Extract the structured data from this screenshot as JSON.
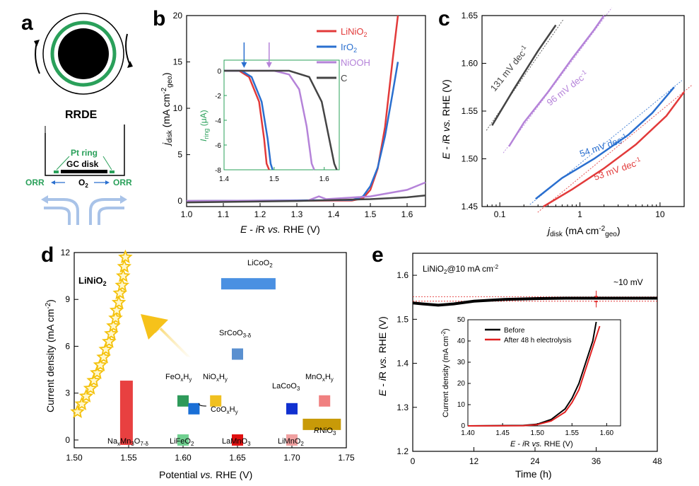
{
  "colors": {
    "LiNiO2": "#e23a3a",
    "IrO2": "#2a6fcf",
    "NiOOH": "#b583d9",
    "C": "#444444",
    "ring_axis": "#2aa05a",
    "star": "#f4c20d"
  },
  "panel_a": {
    "label": "a",
    "rrde_label": "RRDE",
    "pt_ring": "Pt ring",
    "gc_disk": "GC disk",
    "orr_left": "ORR",
    "orr_right": "ORR",
    "o2": "O",
    "o2_sub": "2"
  },
  "chart_data": [
    {
      "panel": "b",
      "type": "line",
      "xlabel": "E - iR vs. RHE (V)",
      "ylabel": "j_disk (mA cm^-2_geo)",
      "xlim": [
        1.0,
        1.65
      ],
      "ylim": [
        -0.6,
        20
      ],
      "xticks": [
        "1.0",
        "1.1",
        "1.2",
        "1.3",
        "1.4",
        "1.5",
        "1.6"
      ],
      "yticks": [
        "0",
        "5",
        "10",
        "15",
        "20"
      ],
      "legend": [
        "LiNiO2",
        "IrO2",
        "NiOOH",
        "C"
      ],
      "legend_placement": "top-right",
      "series": [
        {
          "name": "LiNiO2",
          "points": [
            [
              1.0,
              0.0
            ],
            [
              1.45,
              0.05
            ],
            [
              1.48,
              0.3
            ],
            [
              1.5,
              1.2
            ],
            [
              1.52,
              3.5
            ],
            [
              1.54,
              8
            ],
            [
              1.56,
              15
            ],
            [
              1.575,
              20
            ]
          ]
        },
        {
          "name": "IrO2",
          "points": [
            [
              1.0,
              0.0
            ],
            [
              1.45,
              0.1
            ],
            [
              1.48,
              0.5
            ],
            [
              1.5,
              1.6
            ],
            [
              1.52,
              3.6
            ],
            [
              1.54,
              7
            ],
            [
              1.56,
              11.5
            ],
            [
              1.575,
              15
            ]
          ]
        },
        {
          "name": "NiOOH",
          "points": [
            [
              1.0,
              0.0
            ],
            [
              1.33,
              0.05
            ],
            [
              1.36,
              0.5
            ],
            [
              1.38,
              0.2
            ],
            [
              1.5,
              0.5
            ],
            [
              1.6,
              1.2
            ],
            [
              1.65,
              2
            ]
          ]
        },
        {
          "name": "C",
          "points": [
            [
              1.0,
              -0.15
            ],
            [
              1.3,
              0.0
            ],
            [
              1.5,
              0.2
            ],
            [
              1.6,
              0.4
            ],
            [
              1.65,
              0.6
            ]
          ]
        }
      ],
      "inset": {
        "xlabel": "E - iR vs. RHE (V)",
        "ylabel": "I_ring (μA)",
        "xlim": [
          1.4,
          1.63
        ],
        "ylim": [
          -8,
          0
        ],
        "xticks": [
          "1.4",
          "1.5",
          "1.6"
        ],
        "yticks": [
          "0",
          "-2",
          "-4",
          "-6",
          "-8"
        ],
        "series": [
          {
            "name": "LiNiO2",
            "points": [
              [
                1.4,
                0.0
              ],
              [
                1.43,
                0.0
              ],
              [
                1.45,
                -0.5
              ],
              [
                1.47,
                -2.5
              ],
              [
                1.48,
                -5.5
              ],
              [
                1.485,
                -7.5
              ],
              [
                1.49,
                -8
              ]
            ]
          },
          {
            "name": "IrO2",
            "points": [
              [
                1.4,
                0.0
              ],
              [
                1.435,
                0.0
              ],
              [
                1.455,
                -0.5
              ],
              [
                1.475,
                -2.5
              ],
              [
                1.487,
                -5.5
              ],
              [
                1.493,
                -7.5
              ],
              [
                1.497,
                -8
              ]
            ]
          },
          {
            "name": "NiOOH",
            "points": [
              [
                1.4,
                0.0
              ],
              [
                1.5,
                0.0
              ],
              [
                1.53,
                -0.3
              ],
              [
                1.55,
                -1.5
              ],
              [
                1.565,
                -4.5
              ],
              [
                1.575,
                -7.5
              ],
              [
                1.58,
                -8
              ]
            ]
          },
          {
            "name": "C",
            "points": [
              [
                1.4,
                0.0
              ],
              [
                1.53,
                0.0
              ],
              [
                1.57,
                -0.5
              ],
              [
                1.595,
                -2.5
              ],
              [
                1.61,
                -5.5
              ],
              [
                1.62,
                -7.5
              ],
              [
                1.625,
                -8
              ]
            ]
          }
        ],
        "arrows": [
          {
            "x": 1.44,
            "series": "IrO2"
          },
          {
            "x": 1.49,
            "series": "NiOOH"
          }
        ]
      }
    },
    {
      "panel": "c",
      "type": "line",
      "xscale": "log",
      "xlabel": "j_disk (mA cm^-2_geo)",
      "ylabel": "E - iR vs. RHE (V)",
      "xlim": [
        0.06,
        20
      ],
      "ylim": [
        1.45,
        1.65
      ],
      "xticks": [
        "0.1",
        "1",
        "10"
      ],
      "yticks": [
        "1.45",
        "1.50",
        "1.55",
        "1.60",
        "1.65"
      ],
      "series": [
        {
          "name": "C",
          "slope_label": "131 mV dec",
          "slope_exp": "-1",
          "points": [
            [
              0.08,
              1.535
            ],
            [
              0.15,
              1.573
            ],
            [
              0.3,
              1.613
            ],
            [
              0.5,
              1.64
            ]
          ]
        },
        {
          "name": "NiOOH",
          "slope_label": "96 mV dec",
          "slope_exp": "-1",
          "points": [
            [
              0.13,
              1.513
            ],
            [
              0.2,
              1.538
            ],
            [
              0.4,
              1.57
            ],
            [
              0.8,
              1.605
            ],
            [
              1.5,
              1.635
            ],
            [
              2.0,
              1.65
            ]
          ]
        },
        {
          "name": "IrO2",
          "slope_label": "54 mV dec",
          "slope_exp": "-1",
          "points": [
            [
              0.28,
              1.458
            ],
            [
              0.6,
              1.48
            ],
            [
              1.5,
              1.5
            ],
            [
              4,
              1.525
            ],
            [
              8,
              1.548
            ],
            [
              15,
              1.575
            ]
          ]
        },
        {
          "name": "LiNiO2",
          "slope_label": "53 mV dec",
          "slope_exp": "-1",
          "points": [
            [
              0.35,
              1.45
            ],
            [
              0.8,
              1.468
            ],
            [
              2,
              1.49
            ],
            [
              5,
              1.515
            ],
            [
              12,
              1.545
            ],
            [
              20,
              1.57
            ]
          ]
        }
      ]
    },
    {
      "panel": "d",
      "type": "scatter",
      "xlabel": "Potential vs. RHE (V)",
      "ylabel": "Current density (mA cm^-2)",
      "xlim": [
        1.5,
        1.75
      ],
      "ylim": [
        -0.5,
        12
      ],
      "xticks": [
        "1.50",
        "1.55",
        "1.60",
        "1.65",
        "1.70",
        "1.75"
      ],
      "yticks": [
        "0",
        "3",
        "6",
        "9",
        "12"
      ],
      "highlight": {
        "name": "LiNiO2",
        "points": [
          [
            1.503,
            1.8
          ],
          [
            1.507,
            2.3
          ],
          [
            1.511,
            2.8
          ],
          [
            1.515,
            3.3
          ],
          [
            1.518,
            3.8
          ],
          [
            1.521,
            4.3
          ],
          [
            1.524,
            4.8
          ],
          [
            1.527,
            5.3
          ],
          [
            1.529,
            5.8
          ],
          [
            1.532,
            6.3
          ],
          [
            1.534,
            6.8
          ],
          [
            1.536,
            7.3
          ],
          [
            1.538,
            7.8
          ],
          [
            1.539,
            8.3
          ],
          [
            1.541,
            8.8
          ],
          [
            1.542,
            9.4
          ],
          [
            1.544,
            9.9
          ],
          [
            1.545,
            10.5
          ],
          [
            1.546,
            11.1
          ],
          [
            1.547,
            11.7
          ]
        ]
      },
      "materials": [
        {
          "name": "LiCoO",
          "sub": "2",
          "x": [
            1.635,
            1.685
          ],
          "y": 10.0,
          "color": "#4a90e2",
          "kind": "bar"
        },
        {
          "name": "SrCoO",
          "sub": "3-δ",
          "x": 1.65,
          "y": 5.5,
          "color": "#5a90d0"
        },
        {
          "name": "FeO",
          "sub": "x",
          "suffix": "H",
          "sub2": "y",
          "x": 1.6,
          "y": 2.5,
          "color": "#2e9a5a"
        },
        {
          "name": "NiO",
          "sub": "x",
          "suffix": "H",
          "sub2": "y",
          "x": 1.63,
          "y": 2.5,
          "color": "#f0c020"
        },
        {
          "name": "CoO",
          "sub": "x",
          "suffix": "H",
          "sub2": "y",
          "x": 1.61,
          "y": 2.0,
          "color": "#1a6fd6"
        },
        {
          "name": "LaCoO",
          "sub": "3",
          "x": 1.7,
          "y": 2.0,
          "color": "#1030d0"
        },
        {
          "name": "MnO",
          "sub": "x",
          "suffix": "H",
          "sub2": "y",
          "x": 1.73,
          "y": 2.5,
          "color": "#f08080"
        },
        {
          "name": "LiFeO",
          "sub": "2",
          "x": 1.6,
          "y": 0.0,
          "color": "#70d090"
        },
        {
          "name": "LaMnO",
          "sub": "3",
          "x": 1.65,
          "y": 0.0,
          "color": "#e01010"
        },
        {
          "name": "LiMnO",
          "sub": "2",
          "x": 1.7,
          "y": 0.0,
          "color": "#f0a0a0"
        },
        {
          "name": "RNiO",
          "sub": "3",
          "x": [
            1.71,
            1.745
          ],
          "y": 1.0,
          "color": "#c89a08",
          "kind": "bar"
        },
        {
          "name": "Na",
          "sub": "x",
          "suffix": "Mn",
          "sub2": "3",
          "suffix2": "O",
          "sub3": "7-δ",
          "x": 1.548,
          "y": [
            0,
            3.8
          ],
          "color": "#e84040",
          "kind": "vbar"
        }
      ]
    },
    {
      "panel": "e",
      "type": "line",
      "title": "LiNiO2@10 mA cm-2",
      "annotation": "~10 mV",
      "xlabel": "Time (h)",
      "ylabel": "E - iR vs. RHE (V)",
      "xlim": [
        0,
        48
      ],
      "ylim": [
        1.2,
        1.65
      ],
      "xticks": [
        "0",
        "12",
        "24",
        "36",
        "48"
      ],
      "yticks": [
        "1.2",
        "1.3",
        "1.4",
        "1.5",
        "1.6"
      ],
      "series": [
        {
          "name": "LiNiO2",
          "points": [
            [
              0,
              1.537
            ],
            [
              2,
              1.535
            ],
            [
              5,
              1.532
            ],
            [
              8,
              1.535
            ],
            [
              12,
              1.541
            ],
            [
              18,
              1.545
            ],
            [
              24,
              1.547
            ],
            [
              30,
              1.548
            ],
            [
              36,
              1.548
            ],
            [
              48,
              1.548
            ]
          ]
        }
      ],
      "reference_lines": [
        1.541,
        1.551
      ],
      "inset": {
        "xlabel": "E - iR vs. RHE (V)",
        "ylabel": "Current density (mA cm^-2)",
        "xlim": [
          1.4,
          1.62
        ],
        "ylim": [
          0,
          50
        ],
        "xticks": [
          "1.40",
          "1.45",
          "1.50",
          "1.55",
          "1.60"
        ],
        "yticks": [
          "0",
          "10",
          "20",
          "30",
          "40",
          "50"
        ],
        "legend": [
          "Before",
          "After 48 h electrolysis"
        ],
        "series": [
          {
            "name": "Before",
            "color": "#000000",
            "points": [
              [
                1.4,
                0.0
              ],
              [
                1.48,
                0.2
              ],
              [
                1.5,
                0.8
              ],
              [
                1.52,
                3
              ],
              [
                1.54,
                8
              ],
              [
                1.55,
                13
              ],
              [
                1.56,
                20
              ],
              [
                1.57,
                30
              ],
              [
                1.58,
                40
              ],
              [
                1.585,
                49
              ]
            ]
          },
          {
            "name": "After 48 h electrolysis",
            "color": "#e02020",
            "points": [
              [
                1.4,
                0.0
              ],
              [
                1.48,
                0.1
              ],
              [
                1.5,
                0.6
              ],
              [
                1.52,
                2.3
              ],
              [
                1.54,
                6.5
              ],
              [
                1.55,
                11
              ],
              [
                1.56,
                17
              ],
              [
                1.57,
                27
              ],
              [
                1.58,
                37
              ],
              [
                1.59,
                47
              ]
            ]
          }
        ]
      }
    }
  ]
}
